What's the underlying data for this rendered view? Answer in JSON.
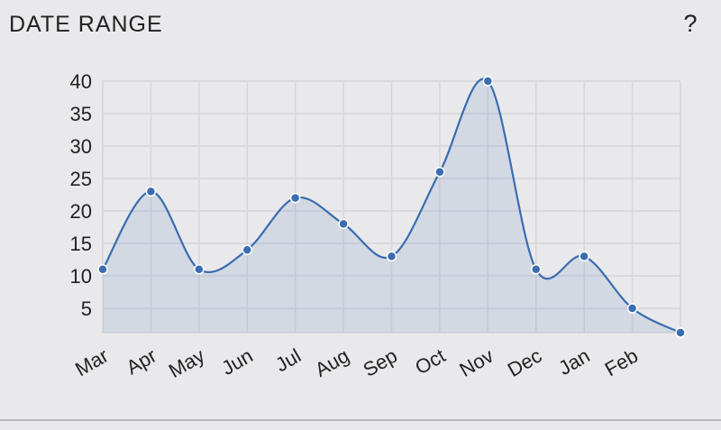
{
  "chart_data": {
    "type": "area-spline",
    "title": "DATE RANGE",
    "help": "?",
    "categories": [
      "Mar",
      "Apr",
      "May",
      "Jun",
      "Jul",
      "Aug",
      "Sep",
      "Oct",
      "Nov",
      "Dec",
      "Jan",
      "Feb",
      null
    ],
    "values": [
      11,
      23,
      11,
      14,
      22,
      18,
      13,
      26,
      40,
      11,
      13,
      5,
      1.25
    ],
    "color": "#3a6db0",
    "ylim": [
      1.25,
      40
    ],
    "yticks": [
      5,
      10,
      15,
      20,
      25,
      30,
      35,
      40
    ],
    "grid": true
  }
}
